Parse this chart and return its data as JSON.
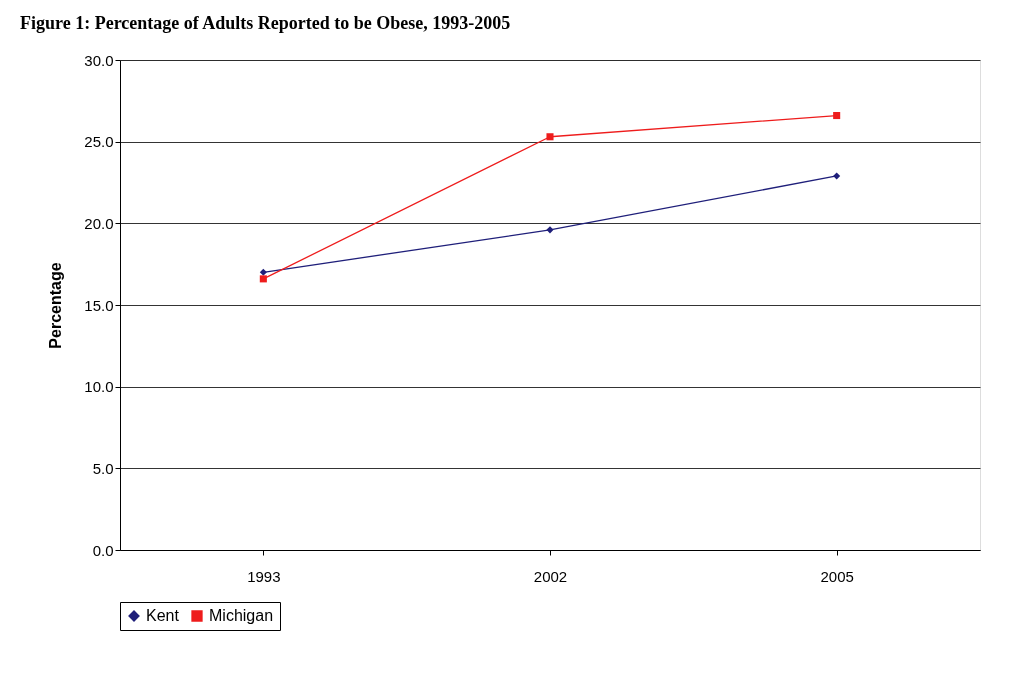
{
  "chart_data": {
    "type": "line",
    "title": "Figure 1: Percentage of Adults Reported to be Obese, 1993-2005",
    "ylabel": "Percentage",
    "categories": [
      "1993",
      "2002",
      "2005"
    ],
    "series": [
      {
        "name": "Kent",
        "color": "#1f1f7a",
        "marker": "diamond",
        "values": [
          17.0,
          19.6,
          22.9
        ]
      },
      {
        "name": "Michigan",
        "color": "#ee1c1c",
        "marker": "square",
        "values": [
          16.6,
          25.3,
          26.6
        ]
      }
    ],
    "ylim": [
      0,
      30
    ],
    "yticks": [
      {
        "value": 0,
        "label": "0.0"
      },
      {
        "value": 5,
        "label": "5.0"
      },
      {
        "value": 10,
        "label": "10.0"
      },
      {
        "value": 15,
        "label": "15.0"
      },
      {
        "value": 20,
        "label": "20.0"
      },
      {
        "value": 25,
        "label": "25.0"
      },
      {
        "value": 30,
        "label": "30.0"
      }
    ],
    "grid": "y",
    "legend": "bottom"
  }
}
